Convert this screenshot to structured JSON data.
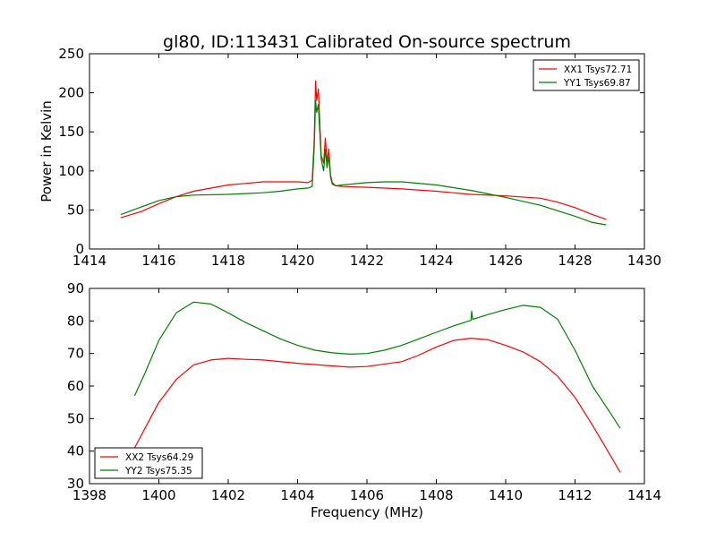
{
  "figure": {
    "title": "gl80, ID:113431 Calibrated On-source spectrum"
  },
  "chart_data": [
    {
      "type": "line",
      "title": "gl80, ID:113431 Calibrated On-source spectrum",
      "xlabel": "",
      "ylabel": "Power in Kelvin",
      "xlim": [
        1414,
        1430
      ],
      "ylim": [
        0,
        250
      ],
      "xticks": [
        1414,
        1416,
        1418,
        1420,
        1422,
        1424,
        1426,
        1428,
        1430
      ],
      "yticks": [
        0,
        50,
        100,
        150,
        200,
        250
      ],
      "grid": false,
      "legend_position": "top-right",
      "series": [
        {
          "name": "XX1 Tsys72.71",
          "color": "#ff0000",
          "x": [
            1414.9,
            1415.5,
            1416.0,
            1416.5,
            1417.0,
            1417.5,
            1418.0,
            1418.5,
            1419.0,
            1419.5,
            1420.0,
            1420.3,
            1420.42,
            1420.48,
            1420.52,
            1420.55,
            1420.6,
            1420.68,
            1420.75,
            1420.8,
            1420.85,
            1420.9,
            1420.95,
            1421.0,
            1421.1,
            1421.3,
            1422.0,
            1423.0,
            1424.0,
            1425.0,
            1426.0,
            1427.0,
            1427.5,
            1428.0,
            1428.5,
            1428.9
          ],
          "y": [
            40,
            48,
            58,
            67,
            74,
            78,
            82,
            84,
            86,
            86,
            86,
            85,
            88,
            140,
            215,
            190,
            205,
            120,
            110,
            142,
            112,
            128,
            95,
            85,
            81,
            80,
            79,
            77,
            74,
            70,
            68,
            65,
            60,
            53,
            44,
            38
          ]
        },
        {
          "name": "YY1 Tsys69.87",
          "color": "#008000",
          "x": [
            1414.9,
            1415.5,
            1416.0,
            1416.5,
            1417.0,
            1418.0,
            1418.5,
            1419.0,
            1419.5,
            1420.0,
            1420.3,
            1420.42,
            1420.48,
            1420.52,
            1420.55,
            1420.6,
            1420.68,
            1420.75,
            1420.8,
            1420.85,
            1420.9,
            1420.95,
            1421.0,
            1421.1,
            1421.3,
            1422.0,
            1422.5,
            1423.0,
            1424.0,
            1425.0,
            1426.0,
            1427.0,
            1427.5,
            1428.0,
            1428.5,
            1428.9
          ],
          "y": [
            44,
            54,
            62,
            67,
            69,
            70,
            71,
            72,
            74,
            77,
            78,
            80,
            130,
            190,
            175,
            185,
            115,
            100,
            128,
            104,
            118,
            92,
            83,
            81,
            82,
            85,
            86,
            86,
            82,
            75,
            66,
            56,
            49,
            42,
            34,
            31
          ]
        }
      ]
    },
    {
      "type": "line",
      "title": "",
      "xlabel": "Frequency (MHz)",
      "ylabel": "",
      "xlim": [
        1398,
        1414
      ],
      "ylim": [
        30,
        90
      ],
      "xticks": [
        1398,
        1400,
        1402,
        1404,
        1406,
        1408,
        1410,
        1412,
        1414
      ],
      "yticks": [
        30,
        40,
        50,
        60,
        70,
        80,
        90
      ],
      "grid": false,
      "legend_position": "bottom-left",
      "series": [
        {
          "name": "XX2 Tsys64.29",
          "color": "#ff0000",
          "x": [
            1399.3,
            1399.6,
            1400.0,
            1400.5,
            1401.0,
            1401.5,
            1402.0,
            1402.5,
            1403.0,
            1404.0,
            1405.0,
            1405.5,
            1406.0,
            1407.0,
            1407.5,
            1408.0,
            1408.5,
            1409.0,
            1409.5,
            1410.0,
            1410.5,
            1411.0,
            1411.5,
            1412.0,
            1412.5,
            1413.0,
            1413.3
          ],
          "y": [
            41,
            47,
            55,
            62,
            66.5,
            68,
            68.5,
            68.2,
            68,
            67,
            66.2,
            65.8,
            66,
            67.5,
            69.5,
            72,
            74,
            74.7,
            74.2,
            72.5,
            70.5,
            67.5,
            63,
            56.5,
            48,
            39,
            33.5
          ]
        },
        {
          "name": "YY2 Tsys75.35",
          "color": "#008000",
          "x": [
            1399.3,
            1399.6,
            1400.0,
            1400.5,
            1401.0,
            1401.5,
            1402.0,
            1402.5,
            1403.0,
            1403.5,
            1404.0,
            1404.5,
            1405.0,
            1405.5,
            1406.0,
            1406.5,
            1407.0,
            1407.5,
            1408.0,
            1408.5,
            1409.0,
            1409.02,
            1409.05,
            1409.5,
            1410.0,
            1410.5,
            1411.0,
            1411.5,
            1412.0,
            1412.5,
            1413.0,
            1413.3
          ],
          "y": [
            57,
            64,
            74,
            82.5,
            85.8,
            85.2,
            82.5,
            79.5,
            77,
            74.5,
            72.5,
            71,
            70.2,
            69.8,
            70,
            71,
            72.5,
            74.5,
            76.5,
            78.5,
            80.2,
            83,
            80.5,
            82,
            83.5,
            84.8,
            84.2,
            80.5,
            71,
            60,
            52,
            47
          ]
        }
      ]
    }
  ]
}
